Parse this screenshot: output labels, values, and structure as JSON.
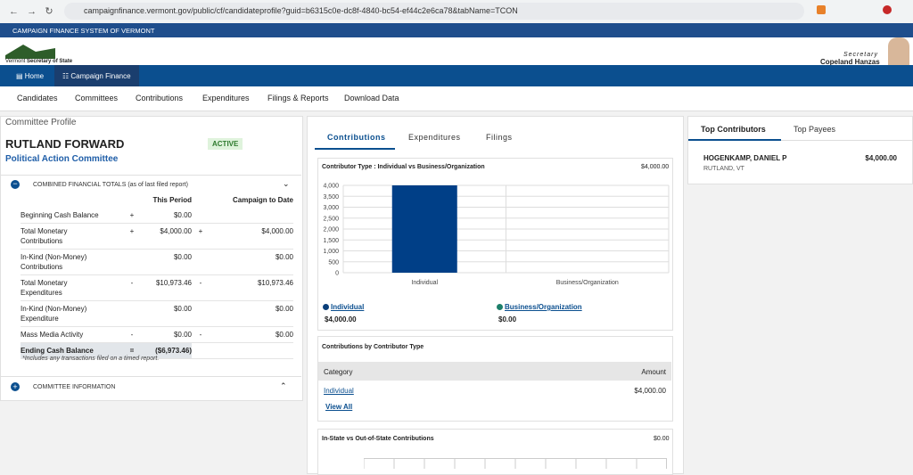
{
  "browser": {
    "url": "campaignfinance.vermont.gov/public/cf/candidateprofile?guid=b6315c0e-dc8f-4840-bc54-ef44c2e6ca78&tabName=TCON"
  },
  "banner": "CAMPAIGN FINANCE SYSTEM OF VERMONT",
  "logo": {
    "line1": "Vermont",
    "line2": "Secretary of State"
  },
  "secretary": {
    "title": "Secretary",
    "name": "Copeland Hanzas"
  },
  "nav_tabs": [
    "Home",
    "Campaign Finance"
  ],
  "menu": [
    "Candidates",
    "Committees",
    "Contributions",
    "Expenditures",
    "Filings & Reports",
    "Download Data"
  ],
  "profile": {
    "heading": "Committee Profile",
    "name": "RUTLAND FORWARD",
    "status": "ACTIVE",
    "type": "Political Action Committee"
  },
  "totals": {
    "title": "COMBINED FINANCIAL TOTALS (as of last filed report)",
    "columns": [
      "This Period",
      "Campaign to Date"
    ],
    "rows": [
      [
        "Beginning Cash Balance",
        "+",
        "$0.00",
        "",
        ""
      ],
      [
        "Total Monetary Contributions",
        "+",
        "$4,000.00",
        "+",
        "$4,000.00"
      ],
      [
        "In-Kind (Non-Money) Contributions",
        "",
        "$0.00",
        "",
        "$0.00"
      ],
      [
        "Total Monetary Expenditures",
        "-",
        "$10,973.46",
        "-",
        "$10,973.46"
      ],
      [
        "In-Kind (Non-Money) Expenditure",
        "",
        "$0.00",
        "",
        "$0.00"
      ],
      [
        "Mass Media Activity",
        "-",
        "$0.00",
        "-",
        "$0.00"
      ]
    ],
    "ending": {
      "label": "Ending Cash Balance",
      "op": "=",
      "value": "($6,973.46)"
    },
    "note": "*Includes any transactions filed on a timed report."
  },
  "committee_info": "COMMITTEE INFORMATION",
  "middle_tabs": [
    "Contributions",
    "Expenditures",
    "Filings"
  ],
  "chart_card": {
    "title": "Contributor Type : Individual vs Business/Organization",
    "total": "$4,000.00"
  },
  "chart_data": {
    "type": "bar",
    "categories": [
      "Individual",
      "Business/Organization"
    ],
    "values": [
      4000,
      0
    ],
    "color": "#003f87",
    "ylim": [
      0,
      4000
    ],
    "yticks": [
      0,
      500,
      {
        "value": 1000,
        "label": "1,000"
      },
      {
        "value": 1500,
        "label": "1,500"
      },
      {
        "value": 2000,
        "label": "2,000"
      },
      {
        "value": 2500,
        "label": "2,500"
      },
      {
        "value": 3000,
        "label": "3,000"
      },
      {
        "value": 3500,
        "label": "3,500"
      },
      {
        "value": 4000,
        "label": "4,000"
      }
    ],
    "grid": true
  },
  "legend": [
    {
      "name": "Individual",
      "color": "#0b3f7a",
      "amount": "$4,000.00"
    },
    {
      "name": "Business/Organization",
      "color": "#1d7f6a",
      "amount": "$0.00"
    }
  ],
  "by_type": {
    "title": "Contributions by Contributor Type",
    "columns": [
      "Category",
      "Amount"
    ],
    "rows": [
      [
        "Individual",
        "$4,000.00"
      ]
    ],
    "link": "View All"
  },
  "instate": {
    "title": "In-State vs Out-of-State Contributions",
    "total": "$0.00"
  },
  "right_tabs": [
    "Top Contributors",
    "Top Payees"
  ],
  "contributors": [
    {
      "name": "HOGENKAMP, DANIEL P",
      "location": "RUTLAND, VT",
      "amount": "$4,000.00"
    }
  ]
}
